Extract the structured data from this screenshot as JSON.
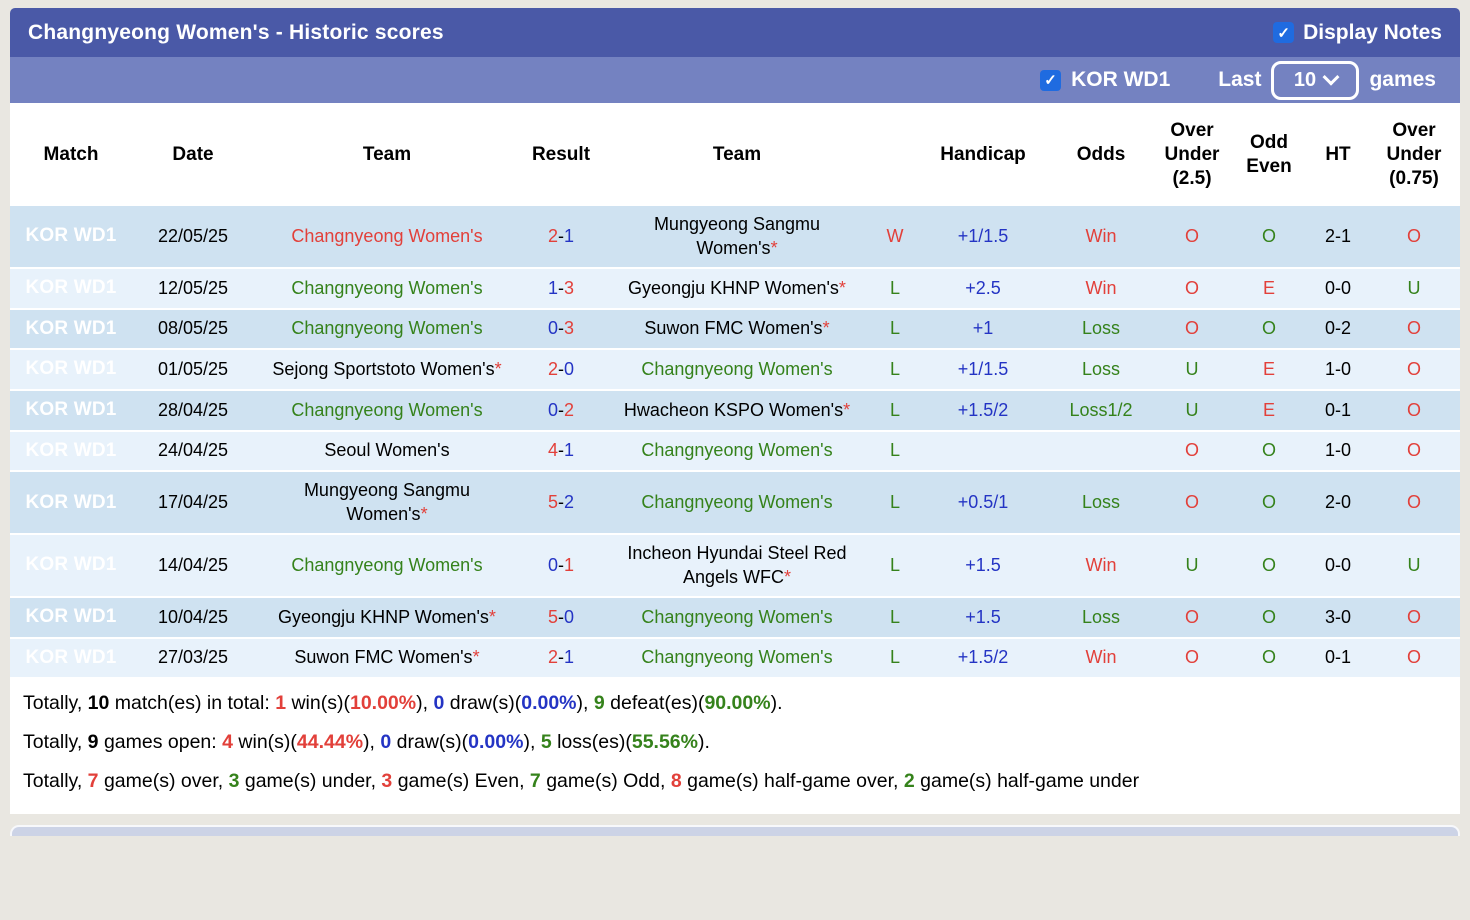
{
  "colors": {
    "title_bar": "#4a59a7",
    "sub_bar": "#7482c1",
    "checkbox_blue": "#1f6be0",
    "badge_red": "#d4585d",
    "row_odd": "#cfe2f1",
    "row_even": "#e8f2fb",
    "text_red": "#e2403a",
    "text_green": "#35821b",
    "text_blue": "#2434c4"
  },
  "header": {
    "title": "Changnyeong Women's - Historic scores",
    "display_notes_label": "Display Notes",
    "league_filter_label": "KOR WD1",
    "last_label": "Last",
    "games_count": "10",
    "games_label": "games"
  },
  "table": {
    "columns": [
      "Match",
      "Date",
      "Team",
      "Result",
      "Team",
      "",
      "Handicap",
      "Odds",
      "Over\nUnder\n(2.5)",
      "Odd\nEven",
      "HT",
      "Over\nUnder\n(0.75)"
    ],
    "rows": [
      {
        "league": "KOR WD1",
        "date": "22/05/25",
        "team1": {
          "name": "Changnyeong Women's",
          "star": false,
          "color": "red"
        },
        "score": {
          "s1": "2",
          "c1": "red",
          "s2": "1",
          "c2": "blue"
        },
        "team2": {
          "name": "Mungyeong Sangmu Women's",
          "star": true,
          "color": "black"
        },
        "wl": {
          "text": "W",
          "color": "red"
        },
        "handicap": "+1/1.5",
        "odds": {
          "text": "Win",
          "color": "red"
        },
        "ou25": {
          "text": "O",
          "color": "red"
        },
        "oe": {
          "text": "O",
          "color": "green"
        },
        "ht": "2-1",
        "ou075": {
          "text": "O",
          "color": "red"
        }
      },
      {
        "league": "KOR WD1",
        "date": "12/05/25",
        "team1": {
          "name": "Changnyeong Women's",
          "star": false,
          "color": "green"
        },
        "score": {
          "s1": "1",
          "c1": "blue",
          "s2": "3",
          "c2": "red"
        },
        "team2": {
          "name": "Gyeongju KHNP Women's",
          "star": true,
          "color": "black"
        },
        "wl": {
          "text": "L",
          "color": "green"
        },
        "handicap": "+2.5",
        "odds": {
          "text": "Win",
          "color": "red"
        },
        "ou25": {
          "text": "O",
          "color": "red"
        },
        "oe": {
          "text": "E",
          "color": "red"
        },
        "ht": "0-0",
        "ou075": {
          "text": "U",
          "color": "green"
        }
      },
      {
        "league": "KOR WD1",
        "date": "08/05/25",
        "team1": {
          "name": "Changnyeong Women's",
          "star": false,
          "color": "green"
        },
        "score": {
          "s1": "0",
          "c1": "blue",
          "s2": "3",
          "c2": "red"
        },
        "team2": {
          "name": "Suwon FMC Women's",
          "star": true,
          "color": "black"
        },
        "wl": {
          "text": "L",
          "color": "green"
        },
        "handicap": "+1",
        "odds": {
          "text": "Loss",
          "color": "green"
        },
        "ou25": {
          "text": "O",
          "color": "red"
        },
        "oe": {
          "text": "O",
          "color": "green"
        },
        "ht": "0-2",
        "ou075": {
          "text": "O",
          "color": "red"
        }
      },
      {
        "league": "KOR WD1",
        "date": "01/05/25",
        "team1": {
          "name": "Sejong Sportstoto Women's",
          "star": true,
          "color": "black"
        },
        "score": {
          "s1": "2",
          "c1": "red",
          "s2": "0",
          "c2": "blue"
        },
        "team2": {
          "name": "Changnyeong Women's",
          "star": false,
          "color": "green"
        },
        "wl": {
          "text": "L",
          "color": "green"
        },
        "handicap": "+1/1.5",
        "odds": {
          "text": "Loss",
          "color": "green"
        },
        "ou25": {
          "text": "U",
          "color": "green"
        },
        "oe": {
          "text": "E",
          "color": "red"
        },
        "ht": "1-0",
        "ou075": {
          "text": "O",
          "color": "red"
        }
      },
      {
        "league": "KOR WD1",
        "date": "28/04/25",
        "team1": {
          "name": "Changnyeong Women's",
          "star": false,
          "color": "green"
        },
        "score": {
          "s1": "0",
          "c1": "blue",
          "s2": "2",
          "c2": "red"
        },
        "team2": {
          "name": "Hwacheon KSPO Women's",
          "star": true,
          "color": "black"
        },
        "wl": {
          "text": "L",
          "color": "green"
        },
        "handicap": "+1.5/2",
        "odds": {
          "text": "Loss1/2",
          "color": "green"
        },
        "ou25": {
          "text": "U",
          "color": "green"
        },
        "oe": {
          "text": "E",
          "color": "red"
        },
        "ht": "0-1",
        "ou075": {
          "text": "O",
          "color": "red"
        }
      },
      {
        "league": "KOR WD1",
        "date": "24/04/25",
        "team1": {
          "name": "Seoul Women's",
          "star": false,
          "color": "black"
        },
        "score": {
          "s1": "4",
          "c1": "red",
          "s2": "1",
          "c2": "blue"
        },
        "team2": {
          "name": "Changnyeong Women's",
          "star": false,
          "color": "green"
        },
        "wl": {
          "text": "L",
          "color": "green"
        },
        "handicap": "",
        "odds": {
          "text": "",
          "color": "black"
        },
        "ou25": {
          "text": "O",
          "color": "red"
        },
        "oe": {
          "text": "O",
          "color": "green"
        },
        "ht": "1-0",
        "ou075": {
          "text": "O",
          "color": "red"
        }
      },
      {
        "league": "KOR WD1",
        "date": "17/04/25",
        "team1": {
          "name": "Mungyeong Sangmu Women's",
          "star": true,
          "color": "black"
        },
        "score": {
          "s1": "5",
          "c1": "red",
          "s2": "2",
          "c2": "blue"
        },
        "team2": {
          "name": "Changnyeong Women's",
          "star": false,
          "color": "green"
        },
        "wl": {
          "text": "L",
          "color": "green"
        },
        "handicap": "+0.5/1",
        "odds": {
          "text": "Loss",
          "color": "green"
        },
        "ou25": {
          "text": "O",
          "color": "red"
        },
        "oe": {
          "text": "O",
          "color": "green"
        },
        "ht": "2-0",
        "ou075": {
          "text": "O",
          "color": "red"
        }
      },
      {
        "league": "KOR WD1",
        "date": "14/04/25",
        "team1": {
          "name": "Changnyeong Women's",
          "star": false,
          "color": "green"
        },
        "score": {
          "s1": "0",
          "c1": "blue",
          "s2": "1",
          "c2": "red"
        },
        "team2": {
          "name": "Incheon Hyundai Steel Red Angels WFC",
          "star": true,
          "color": "black"
        },
        "wl": {
          "text": "L",
          "color": "green"
        },
        "handicap": "+1.5",
        "odds": {
          "text": "Win",
          "color": "red"
        },
        "ou25": {
          "text": "U",
          "color": "green"
        },
        "oe": {
          "text": "O",
          "color": "green"
        },
        "ht": "0-0",
        "ou075": {
          "text": "U",
          "color": "green"
        }
      },
      {
        "league": "KOR WD1",
        "date": "10/04/25",
        "team1": {
          "name": "Gyeongju KHNP Women's",
          "star": true,
          "color": "black"
        },
        "score": {
          "s1": "5",
          "c1": "red",
          "s2": "0",
          "c2": "blue"
        },
        "team2": {
          "name": "Changnyeong Women's",
          "star": false,
          "color": "green"
        },
        "wl": {
          "text": "L",
          "color": "green"
        },
        "handicap": "+1.5",
        "odds": {
          "text": "Loss",
          "color": "green"
        },
        "ou25": {
          "text": "O",
          "color": "red"
        },
        "oe": {
          "text": "O",
          "color": "green"
        },
        "ht": "3-0",
        "ou075": {
          "text": "O",
          "color": "red"
        }
      },
      {
        "league": "KOR WD1",
        "date": "27/03/25",
        "team1": {
          "name": "Suwon FMC Women's",
          "star": true,
          "color": "black"
        },
        "score": {
          "s1": "2",
          "c1": "red",
          "s2": "1",
          "c2": "blue"
        },
        "team2": {
          "name": "Changnyeong Women's",
          "star": false,
          "color": "green"
        },
        "wl": {
          "text": "L",
          "color": "green"
        },
        "handicap": "+1.5/2",
        "odds": {
          "text": "Win",
          "color": "red"
        },
        "ou25": {
          "text": "O",
          "color": "red"
        },
        "oe": {
          "text": "O",
          "color": "green"
        },
        "ht": "0-1",
        "ou075": {
          "text": "O",
          "color": "red"
        }
      }
    ]
  },
  "footer": {
    "lines": [
      [
        {
          "t": "Totally, ",
          "c": "black",
          "b": false
        },
        {
          "t": "10",
          "c": "black",
          "b": true
        },
        {
          "t": " match(es) in total: ",
          "c": "black",
          "b": false
        },
        {
          "t": "1",
          "c": "red",
          "b": true
        },
        {
          "t": " win(s)(",
          "c": "black",
          "b": false
        },
        {
          "t": "10.00%",
          "c": "red",
          "b": true
        },
        {
          "t": "), ",
          "c": "black",
          "b": false
        },
        {
          "t": "0",
          "c": "blue",
          "b": true
        },
        {
          "t": " draw(s)(",
          "c": "black",
          "b": false
        },
        {
          "t": "0.00%",
          "c": "blue",
          "b": true
        },
        {
          "t": "), ",
          "c": "black",
          "b": false
        },
        {
          "t": "9",
          "c": "green",
          "b": true
        },
        {
          "t": " defeat(es)(",
          "c": "black",
          "b": false
        },
        {
          "t": "90.00%",
          "c": "green",
          "b": true
        },
        {
          "t": ").",
          "c": "black",
          "b": false
        }
      ],
      [
        {
          "t": "Totally, ",
          "c": "black",
          "b": false
        },
        {
          "t": "9",
          "c": "black",
          "b": true
        },
        {
          "t": " games open: ",
          "c": "black",
          "b": false
        },
        {
          "t": "4",
          "c": "red",
          "b": true
        },
        {
          "t": " win(s)(",
          "c": "black",
          "b": false
        },
        {
          "t": "44.44%",
          "c": "red",
          "b": true
        },
        {
          "t": "), ",
          "c": "black",
          "b": false
        },
        {
          "t": "0",
          "c": "blue",
          "b": true
        },
        {
          "t": " draw(s)(",
          "c": "black",
          "b": false
        },
        {
          "t": "0.00%",
          "c": "blue",
          "b": true
        },
        {
          "t": "), ",
          "c": "black",
          "b": false
        },
        {
          "t": "5",
          "c": "green",
          "b": true
        },
        {
          "t": " loss(es)(",
          "c": "black",
          "b": false
        },
        {
          "t": "55.56%",
          "c": "green",
          "b": true
        },
        {
          "t": ").",
          "c": "black",
          "b": false
        }
      ],
      [
        {
          "t": "Totally, ",
          "c": "black",
          "b": false
        },
        {
          "t": "7",
          "c": "red",
          "b": true
        },
        {
          "t": " game(s) over, ",
          "c": "black",
          "b": false
        },
        {
          "t": "3",
          "c": "green",
          "b": true
        },
        {
          "t": " game(s) under, ",
          "c": "black",
          "b": false
        },
        {
          "t": "3",
          "c": "red",
          "b": true
        },
        {
          "t": " game(s) Even, ",
          "c": "black",
          "b": false
        },
        {
          "t": "7",
          "c": "green",
          "b": true
        },
        {
          "t": " game(s) Odd, ",
          "c": "black",
          "b": false
        },
        {
          "t": "8",
          "c": "red",
          "b": true
        },
        {
          "t": " game(s) half-game over, ",
          "c": "black",
          "b": false
        },
        {
          "t": "2",
          "c": "green",
          "b": true
        },
        {
          "t": " game(s) half-game under",
          "c": "black",
          "b": false
        }
      ]
    ]
  }
}
